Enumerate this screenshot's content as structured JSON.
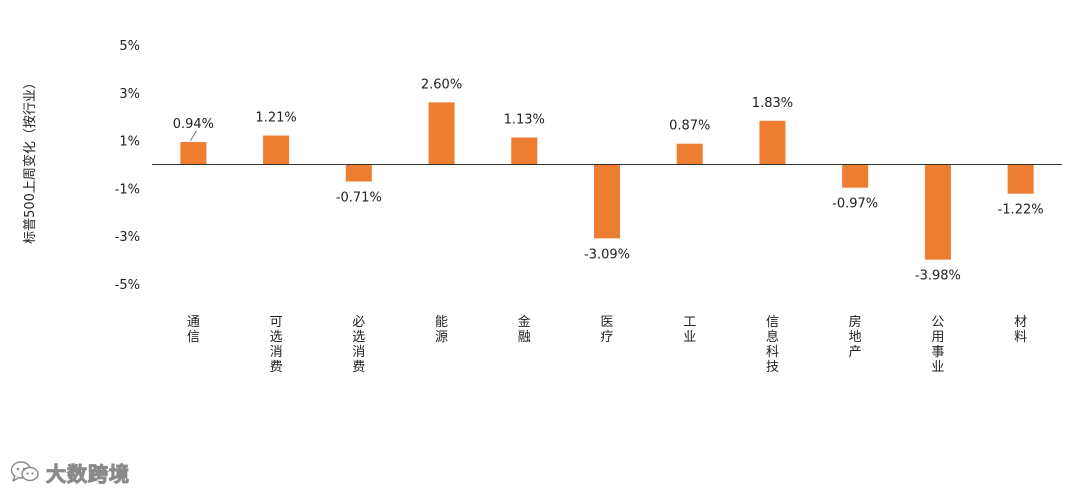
{
  "chart_data": {
    "type": "bar",
    "ylabel": "标普500上周变化（按行业）",
    "categories": [
      "通信",
      "可选消费",
      "必选消费",
      "能源",
      "金融",
      "医疗",
      "工业",
      "信息科技",
      "房地产",
      "公用事业",
      "材料"
    ],
    "values": [
      0.94,
      1.21,
      -0.71,
      2.6,
      1.13,
      -3.09,
      0.87,
      1.83,
      -0.97,
      -3.98,
      -1.22
    ],
    "value_labels": [
      "0.94%",
      "1.21%",
      "-0.71%",
      "2.60%",
      "1.13%",
      "-3.09%",
      "0.87%",
      "1.83%",
      "-0.97%",
      "-3.98%",
      "-1.22%"
    ],
    "ylim": [
      -5,
      5
    ],
    "yticks": [
      5,
      3,
      1,
      -1,
      -3,
      -5
    ],
    "ytick_labels": [
      "5%",
      "3%",
      "1%",
      "-1%",
      "-3%",
      "-5%"
    ],
    "bar_color": "#ED7D31",
    "grid": false,
    "legend": "none"
  },
  "watermark": {
    "text": "大数跨境",
    "icon": "wechat-logo-icon"
  }
}
